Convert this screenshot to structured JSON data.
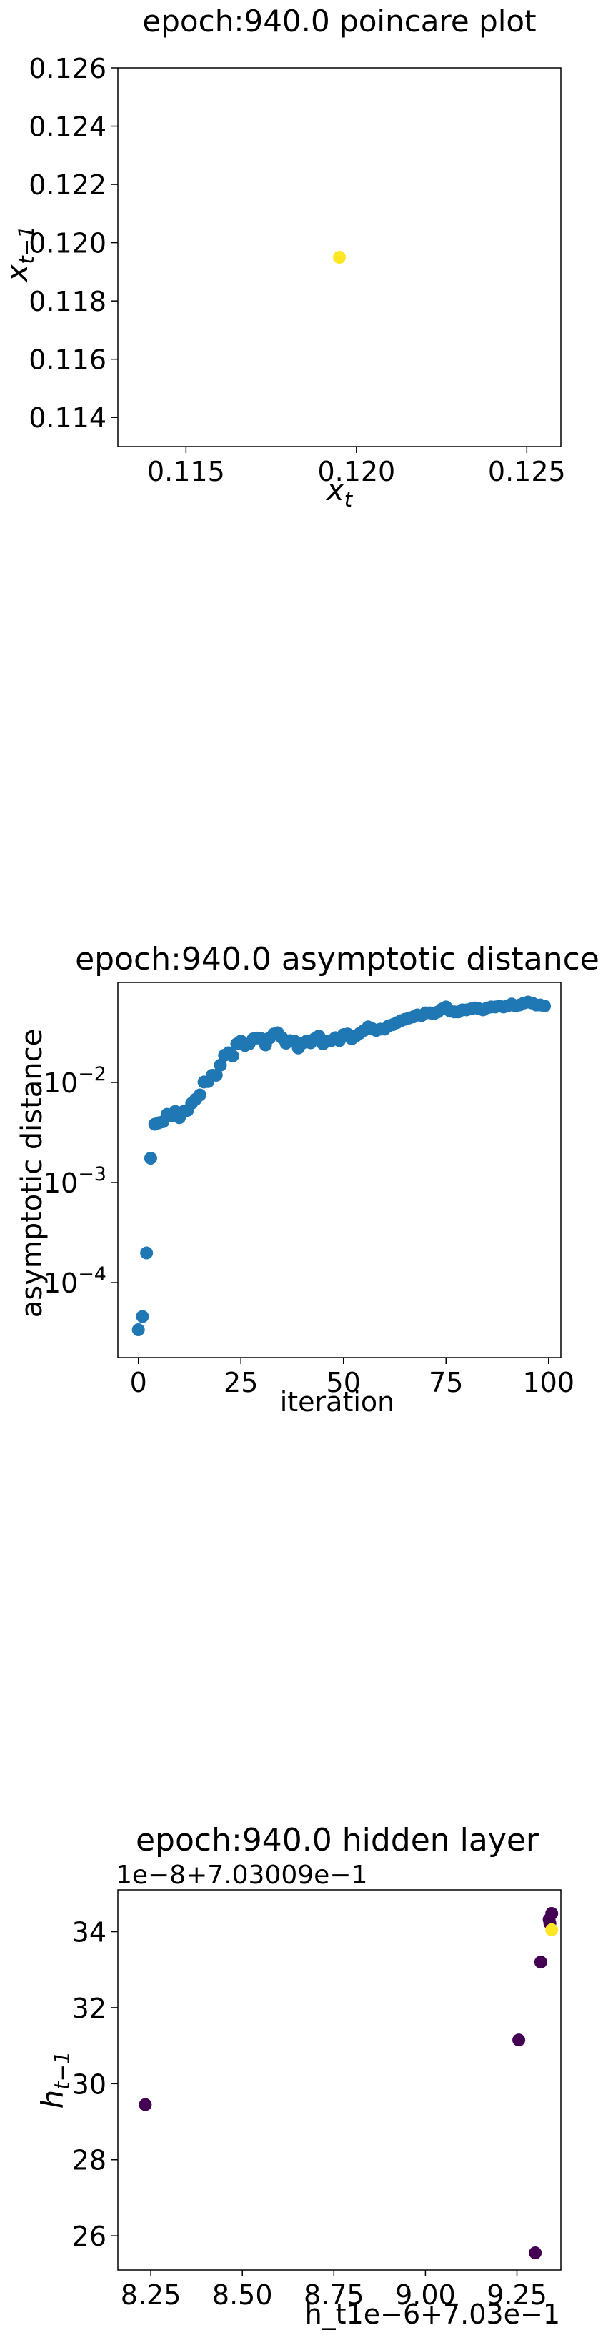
{
  "chart_data": [
    {
      "type": "scatter",
      "title": "epoch:940.0 poincare plot",
      "xlabel": "x",
      "xlabel_sub": "t",
      "ylabel": "x",
      "ylabel_sub": "t−1",
      "xlim": [
        0.113,
        0.126
      ],
      "ylim": [
        0.113,
        0.126
      ],
      "xticks": [
        0.115,
        0.12,
        0.125
      ],
      "xtick_labels": [
        "0.115",
        "0.120",
        "0.125"
      ],
      "yticks": [
        0.114,
        0.116,
        0.118,
        0.12,
        0.122,
        0.124,
        0.126
      ],
      "ytick_labels": [
        "0.114",
        "0.116",
        "0.118",
        "0.120",
        "0.122",
        "0.124",
        "0.126"
      ],
      "grid": false,
      "points": [
        {
          "x": 0.1195,
          "y": 0.1195,
          "color": "#fde725"
        }
      ]
    },
    {
      "type": "scatter",
      "title": "epoch:940.0 asymptotic distance",
      "xlabel": "iteration",
      "ylabel": "asymptotic distance",
      "yscale": "log",
      "xlim": [
        -5,
        103
      ],
      "ylim": [
        1.78e-05,
        0.1
      ],
      "xticks": [
        0,
        25,
        50,
        75,
        100
      ],
      "xtick_labels": [
        "0",
        "25",
        "50",
        "75",
        "100"
      ],
      "yticks": [
        0.0001,
        0.001,
        0.01
      ],
      "ytick_labels": [
        "10",
        "10",
        "10"
      ],
      "ytick_exponents": [
        "−4",
        "−3",
        "−2"
      ],
      "grid": false,
      "color": "#1f77b4",
      "x": [
        0,
        1,
        2,
        3,
        4,
        5,
        6,
        7,
        8,
        9,
        10,
        11,
        12,
        13,
        14,
        15,
        16,
        17,
        18,
        19,
        20,
        21,
        22,
        23,
        24,
        25,
        26,
        27,
        28,
        29,
        30,
        31,
        32,
        33,
        34,
        35,
        36,
        37,
        38,
        39,
        40,
        41,
        42,
        43,
        44,
        45,
        46,
        47,
        48,
        49,
        50,
        51,
        52,
        53,
        54,
        55,
        56,
        57,
        58,
        59,
        60,
        61,
        62,
        63,
        64,
        65,
        66,
        67,
        68,
        69,
        70,
        71,
        72,
        73,
        74,
        75,
        76,
        77,
        78,
        79,
        80,
        81,
        82,
        83,
        84,
        85,
        86,
        87,
        88,
        89,
        90,
        91,
        92,
        93,
        94,
        95,
        96,
        97,
        98,
        99
      ],
      "y": [
        3.38e-05,
        4.58e-05,
        0.000198,
        0.00175,
        0.00382,
        0.00395,
        0.00405,
        0.0048,
        0.00465,
        0.00512,
        0.00445,
        0.00512,
        0.00527,
        0.0062,
        0.0068,
        0.0075,
        0.0101,
        0.0102,
        0.0118,
        0.0118,
        0.0149,
        0.0187,
        0.0198,
        0.0184,
        0.0243,
        0.0259,
        0.0234,
        0.0243,
        0.0273,
        0.0278,
        0.0274,
        0.0237,
        0.0279,
        0.0305,
        0.0314,
        0.028,
        0.0247,
        0.0262,
        0.026,
        0.0221,
        0.0247,
        0.0259,
        0.0249,
        0.0274,
        0.0291,
        0.0243,
        0.0258,
        0.0262,
        0.028,
        0.0262,
        0.0301,
        0.0305,
        0.0273,
        0.0291,
        0.0311,
        0.0331,
        0.0359,
        0.0345,
        0.0331,
        0.0341,
        0.0341,
        0.0368,
        0.0378,
        0.0396,
        0.0414,
        0.0428,
        0.0441,
        0.0452,
        0.0473,
        0.0465,
        0.0496,
        0.0496,
        0.0485,
        0.0507,
        0.0543,
        0.0568,
        0.0516,
        0.0507,
        0.0507,
        0.0531,
        0.0531,
        0.0543,
        0.0556,
        0.0546,
        0.0531,
        0.0556,
        0.0568,
        0.0568,
        0.0581,
        0.0568,
        0.0581,
        0.0608,
        0.0581,
        0.0596,
        0.0622,
        0.0636,
        0.0622,
        0.0594,
        0.0594,
        0.0581
      ]
    },
    {
      "type": "scatter",
      "title": "epoch:940.0 hidden layer",
      "xlabel": "h_t",
      "ylabel": "h",
      "ylabel_sub": "t−1",
      "x_offset_text": "1e−6+7.03e−1",
      "y_offset_text": "1e−8+7.03009e−1",
      "xlim": [
        8.16,
        9.37
      ],
      "ylim": [
        25.1,
        35.1
      ],
      "xticks": [
        8.25,
        8.5,
        8.75,
        9.0,
        9.25
      ],
      "xtick_labels": [
        "8.25",
        "8.50",
        "8.75",
        "9.00",
        "9.25"
      ],
      "yticks": [
        26,
        28,
        30,
        32,
        34
      ],
      "ytick_labels": [
        "26",
        "28",
        "30",
        "32",
        "34"
      ],
      "grid": false,
      "points": [
        {
          "x": 8.235,
          "y": 29.45,
          "color": "#440154"
        },
        {
          "x": 9.3,
          "y": 25.55,
          "color": "#440154"
        },
        {
          "x": 9.255,
          "y": 31.15,
          "color": "#440154"
        },
        {
          "x": 9.315,
          "y": 33.2,
          "color": "#440154"
        },
        {
          "x": 9.34,
          "y": 34.22,
          "color": "#440154"
        },
        {
          "x": 9.345,
          "y": 34.48,
          "color": "#440154"
        },
        {
          "x": 9.338,
          "y": 34.32,
          "color": "#440154"
        },
        {
          "x": 9.345,
          "y": 34.05,
          "color": "#fde725"
        }
      ]
    }
  ]
}
